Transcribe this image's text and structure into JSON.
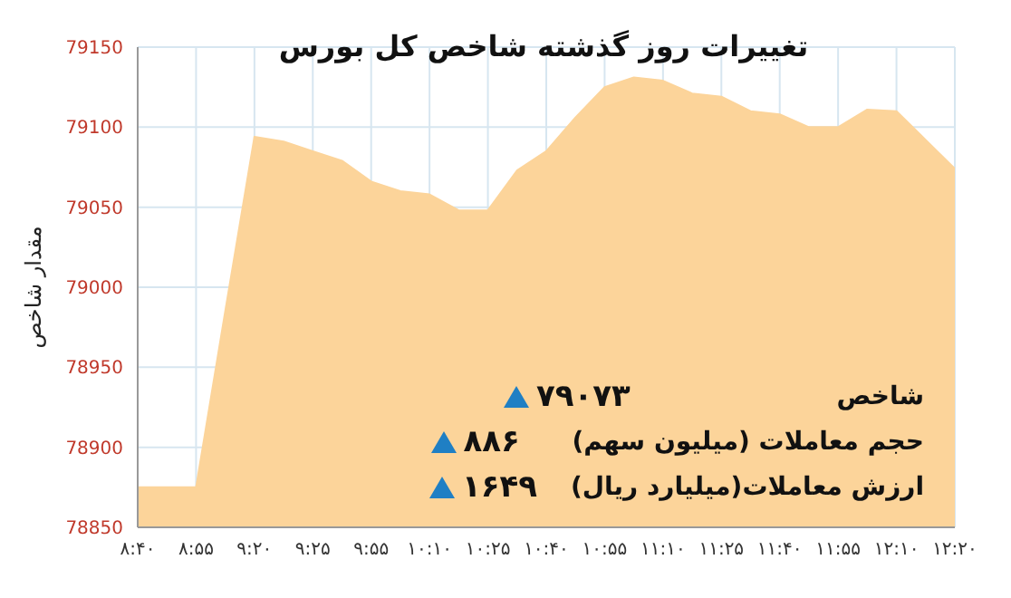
{
  "chart_data": {
    "type": "area",
    "title": "تغییرات روز گذشته شاخص کل بورس",
    "ylabel": "مقدار شاخص",
    "categories": [
      "۸:۴۰",
      null,
      "۸:۵۵",
      null,
      "۹:۲۰",
      null,
      "۹:۲۵",
      null,
      "۹:۵۵",
      null,
      "۱۰:۱۰",
      null,
      "۱۰:۲۵",
      null,
      "۱۰:۴۰",
      null,
      "۱۰:۵۵",
      null,
      "۱۱:۱۰",
      null,
      "۱۱:۲۵",
      null,
      "۱۱:۴۰",
      null,
      "۱۱:۵۵",
      null,
      "۱۲:۱۰",
      null,
      "۱۲:۲۰"
    ],
    "series": [
      {
        "color": "#fcd49a",
        "values": [
          78875,
          78875,
          78875,
          78985,
          79094,
          79091,
          79085,
          79079,
          79066,
          79060,
          79058,
          79048,
          79048,
          79073,
          79085,
          79106,
          79125,
          79131,
          79129,
          79121,
          79119,
          79110,
          79108,
          79100,
          79100,
          79111,
          79110,
          79092,
          79074
        ]
      }
    ],
    "ylim": [
      78850,
      79150
    ],
    "yticks": [
      78850,
      78900,
      78950,
      79000,
      79050,
      79100,
      79150
    ],
    "grid": true,
    "marker": "none",
    "annotations": [
      "شاخص",
      "۷۹۰۷۳",
      "حجم معاملات (میلیون سهم)",
      "۸۸۶",
      "ارزش معاملات(میلیارد ریال)",
      "۱۶۴۹"
    ]
  }
}
